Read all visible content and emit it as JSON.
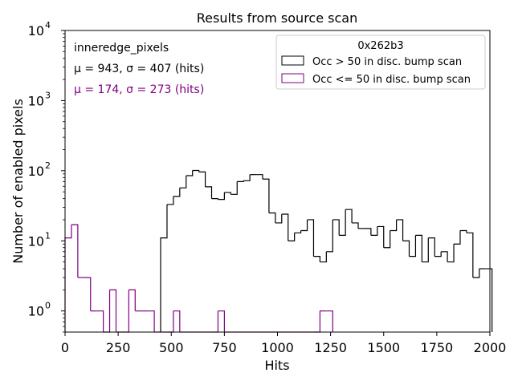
{
  "chart_data": {
    "type": "histogram",
    "title": "Results from source scan",
    "xlabel": "Hits",
    "ylabel": "Number of enabled pixels",
    "xlim": [
      0,
      2000
    ],
    "ylim": [
      0.5,
      10000
    ],
    "yscale": "log",
    "grid": false,
    "x_ticks": [
      "0",
      "250",
      "500",
      "750",
      "1000",
      "1250",
      "1500",
      "1750",
      "2000"
    ],
    "x_tick_values": [
      0,
      250,
      500,
      750,
      1000,
      1250,
      1500,
      1750,
      2000
    ],
    "y_ticks": [
      {
        "base": "10",
        "exp": "0",
        "value": 1
      },
      {
        "base": "10",
        "exp": "1",
        "value": 10
      },
      {
        "base": "10",
        "exp": "2",
        "value": 100
      },
      {
        "base": "10",
        "exp": "3",
        "value": 1000
      },
      {
        "base": "10",
        "exp": "4",
        "value": 10000
      }
    ],
    "annotations": [
      {
        "text": "inneredge_pixels",
        "color": "#000000"
      },
      {
        "text": "μ = 943, σ = 407 (hits)",
        "color": "#000000"
      },
      {
        "text": "μ = 174, σ = 273 (hits)",
        "color": "#800080"
      }
    ],
    "legend": {
      "position": "top-right",
      "title": "0x262b3",
      "entries": [
        {
          "label": "Occ > 50 in disc. bump scan",
          "color": "#000000"
        },
        {
          "label": "Occ <= 50 in disc. bump scan",
          "color": "#800080"
        }
      ]
    },
    "bin_width": 30,
    "series": [
      {
        "name": "Occ > 50 in disc. bump scan",
        "color": "#000000",
        "x_start": 450,
        "values": [
          11,
          33,
          43,
          57,
          85,
          101,
          96,
          59,
          40,
          39,
          49,
          46,
          70,
          72,
          88,
          88,
          76,
          25,
          18,
          24,
          10,
          13,
          14,
          20,
          6,
          5,
          7,
          20,
          12,
          28,
          18,
          15,
          15,
          12,
          16,
          8,
          14,
          20,
          10,
          6,
          12,
          5,
          11,
          6,
          7,
          5,
          9,
          14,
          13,
          3,
          4,
          4
        ]
      },
      {
        "name": "Occ <= 50 in disc. bump scan",
        "color": "#800080",
        "x_start": 0,
        "values": [
          11,
          17,
          3,
          3,
          1,
          1,
          0,
          2,
          0,
          0,
          2,
          1,
          1,
          1,
          0,
          0,
          0,
          1,
          0,
          0,
          0,
          0,
          0,
          0,
          1,
          0,
          0,
          0,
          0,
          0,
          0,
          0,
          0,
          0,
          0,
          0,
          0,
          0,
          0,
          0,
          1,
          1
        ]
      }
    ]
  }
}
